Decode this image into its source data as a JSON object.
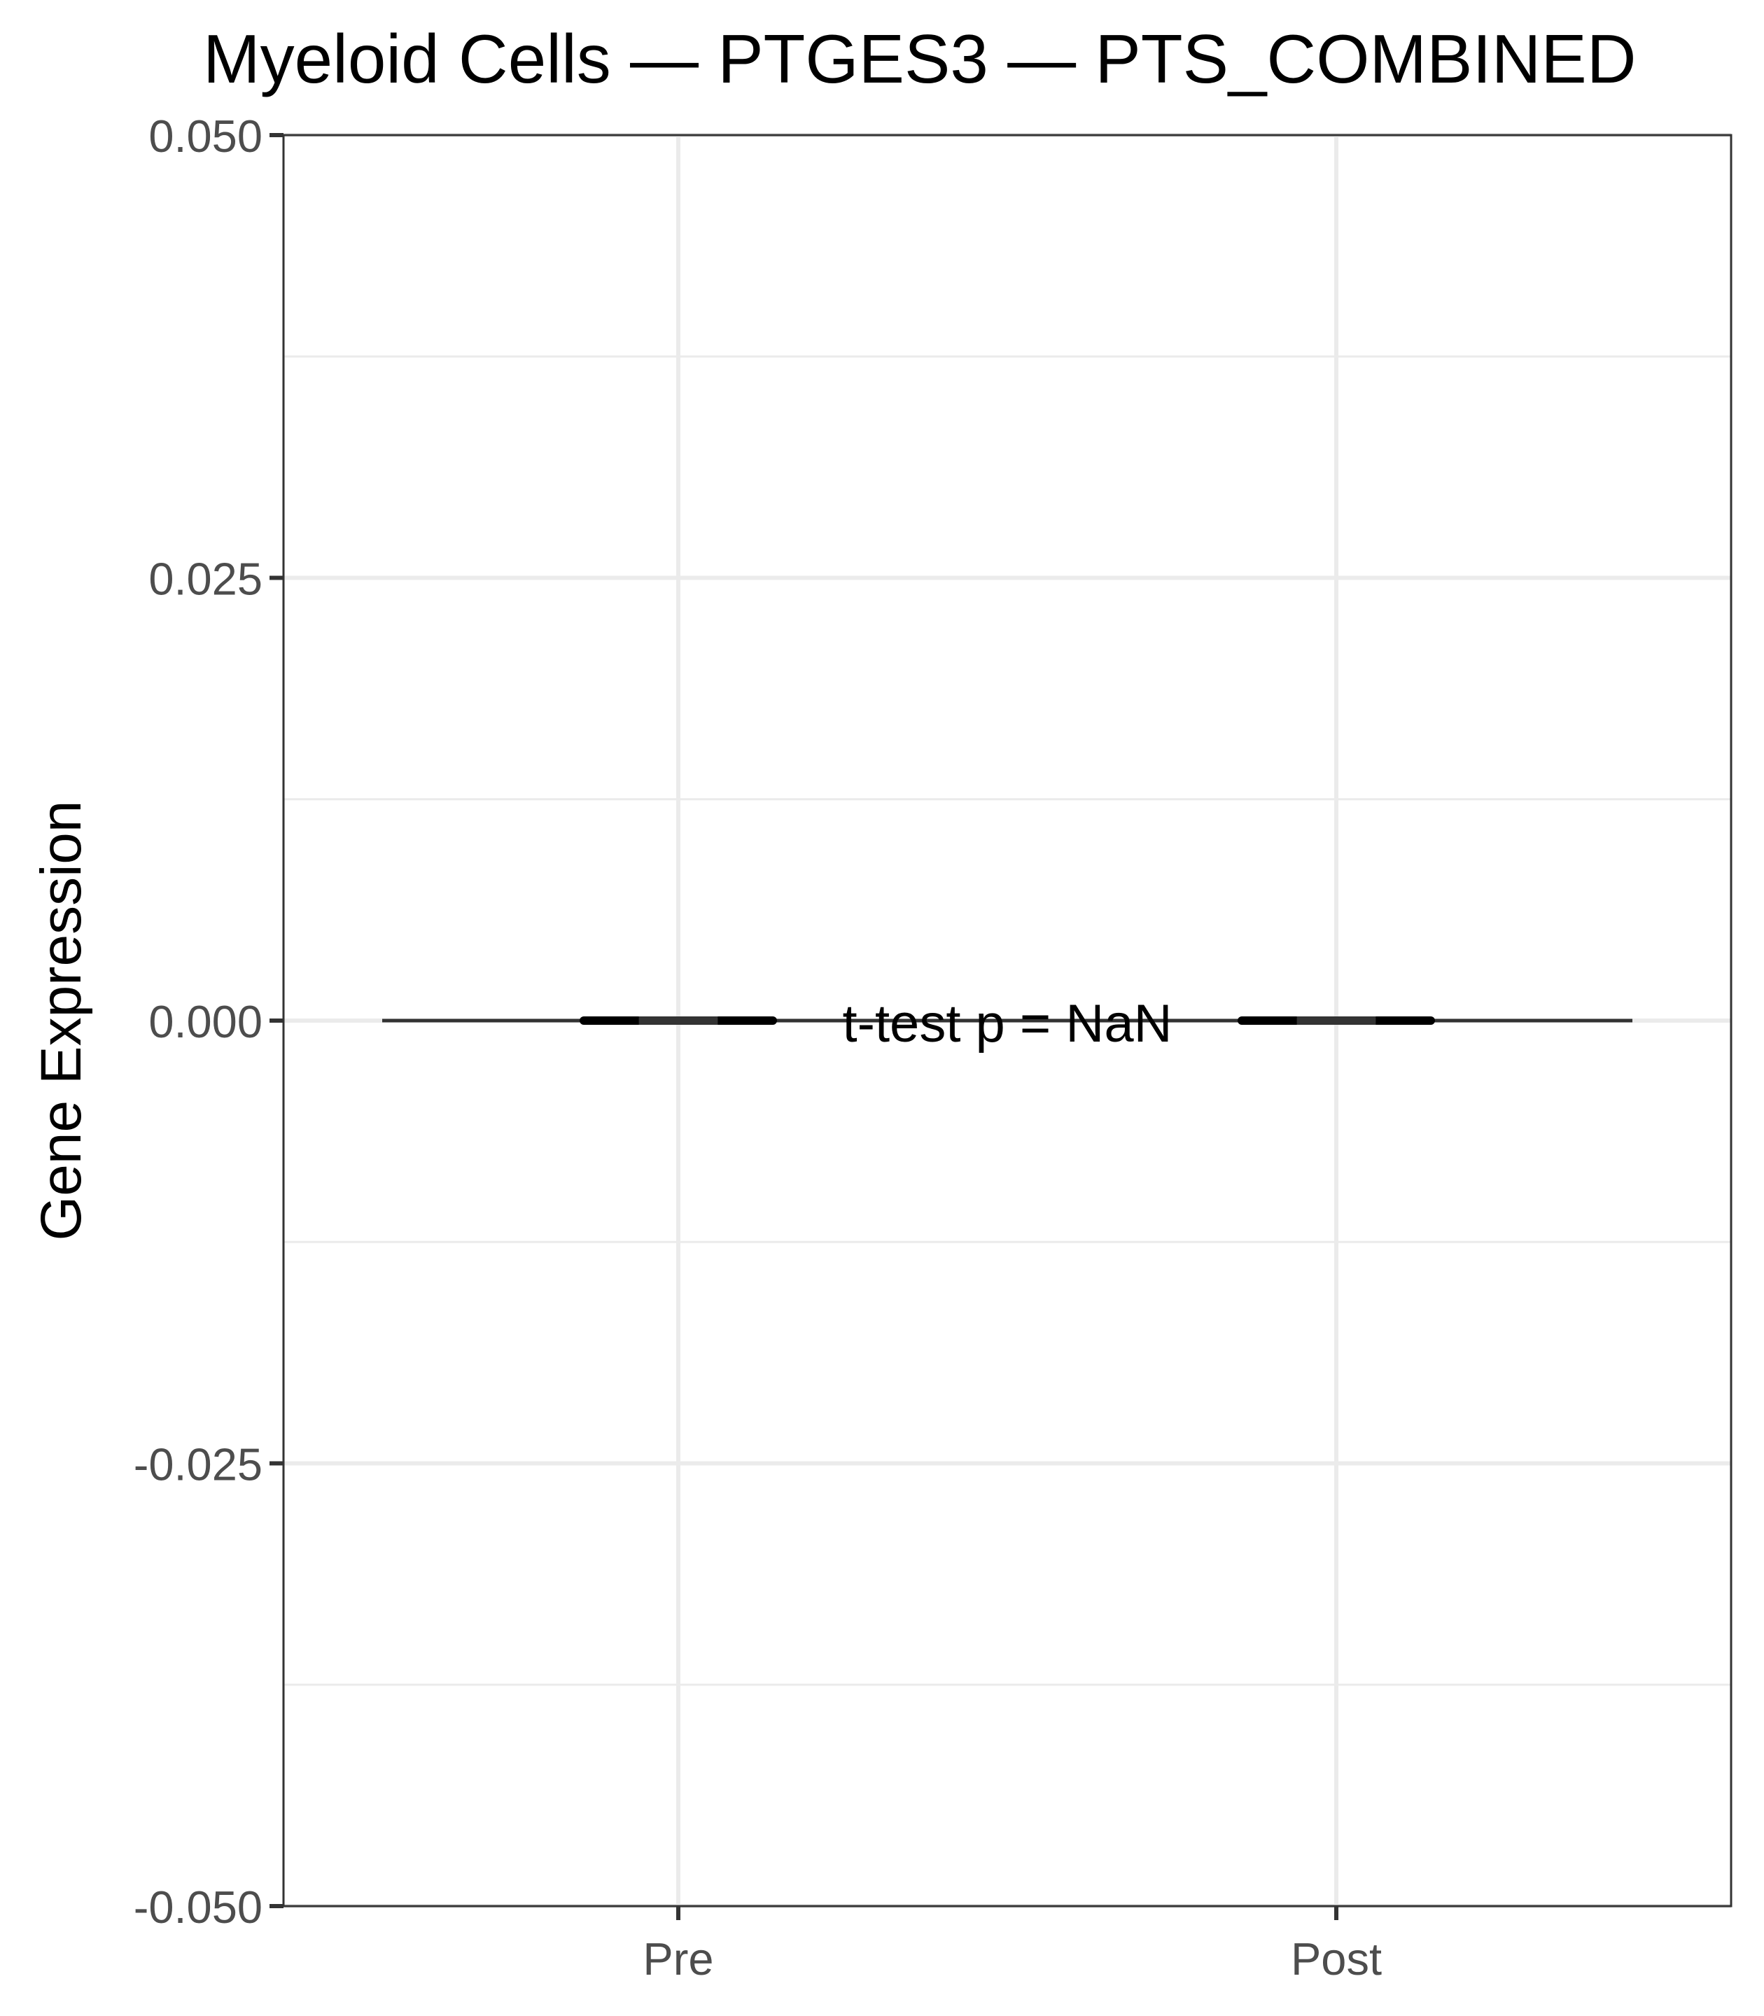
{
  "chart_data": {
    "type": "boxplot",
    "title": "Myeloid Cells — PTGES3 — PTS_COMBINED",
    "xlabel": "",
    "ylabel": "Gene Expression",
    "categories": [
      "Pre",
      "Post"
    ],
    "ylim": [
      -0.05,
      0.05
    ],
    "yticks": [
      -0.05,
      -0.025,
      0,
      0.025,
      0.05
    ],
    "ytick_labels": [
      "-0.050",
      "-0.025",
      "0.000",
      "0.025",
      "0.050"
    ],
    "grid": true,
    "boxes": [
      {
        "category": "Pre",
        "min": 0,
        "q1": 0,
        "median": 0,
        "q3": 0,
        "max": 0
      },
      {
        "category": "Post",
        "min": 0,
        "q1": 0,
        "median": 0,
        "q3": 0,
        "max": 0
      }
    ],
    "reference_line": 0,
    "annotation": {
      "text": "t-test p = NaN",
      "x_between": [
        "Pre",
        "Post"
      ],
      "y": 0
    }
  }
}
